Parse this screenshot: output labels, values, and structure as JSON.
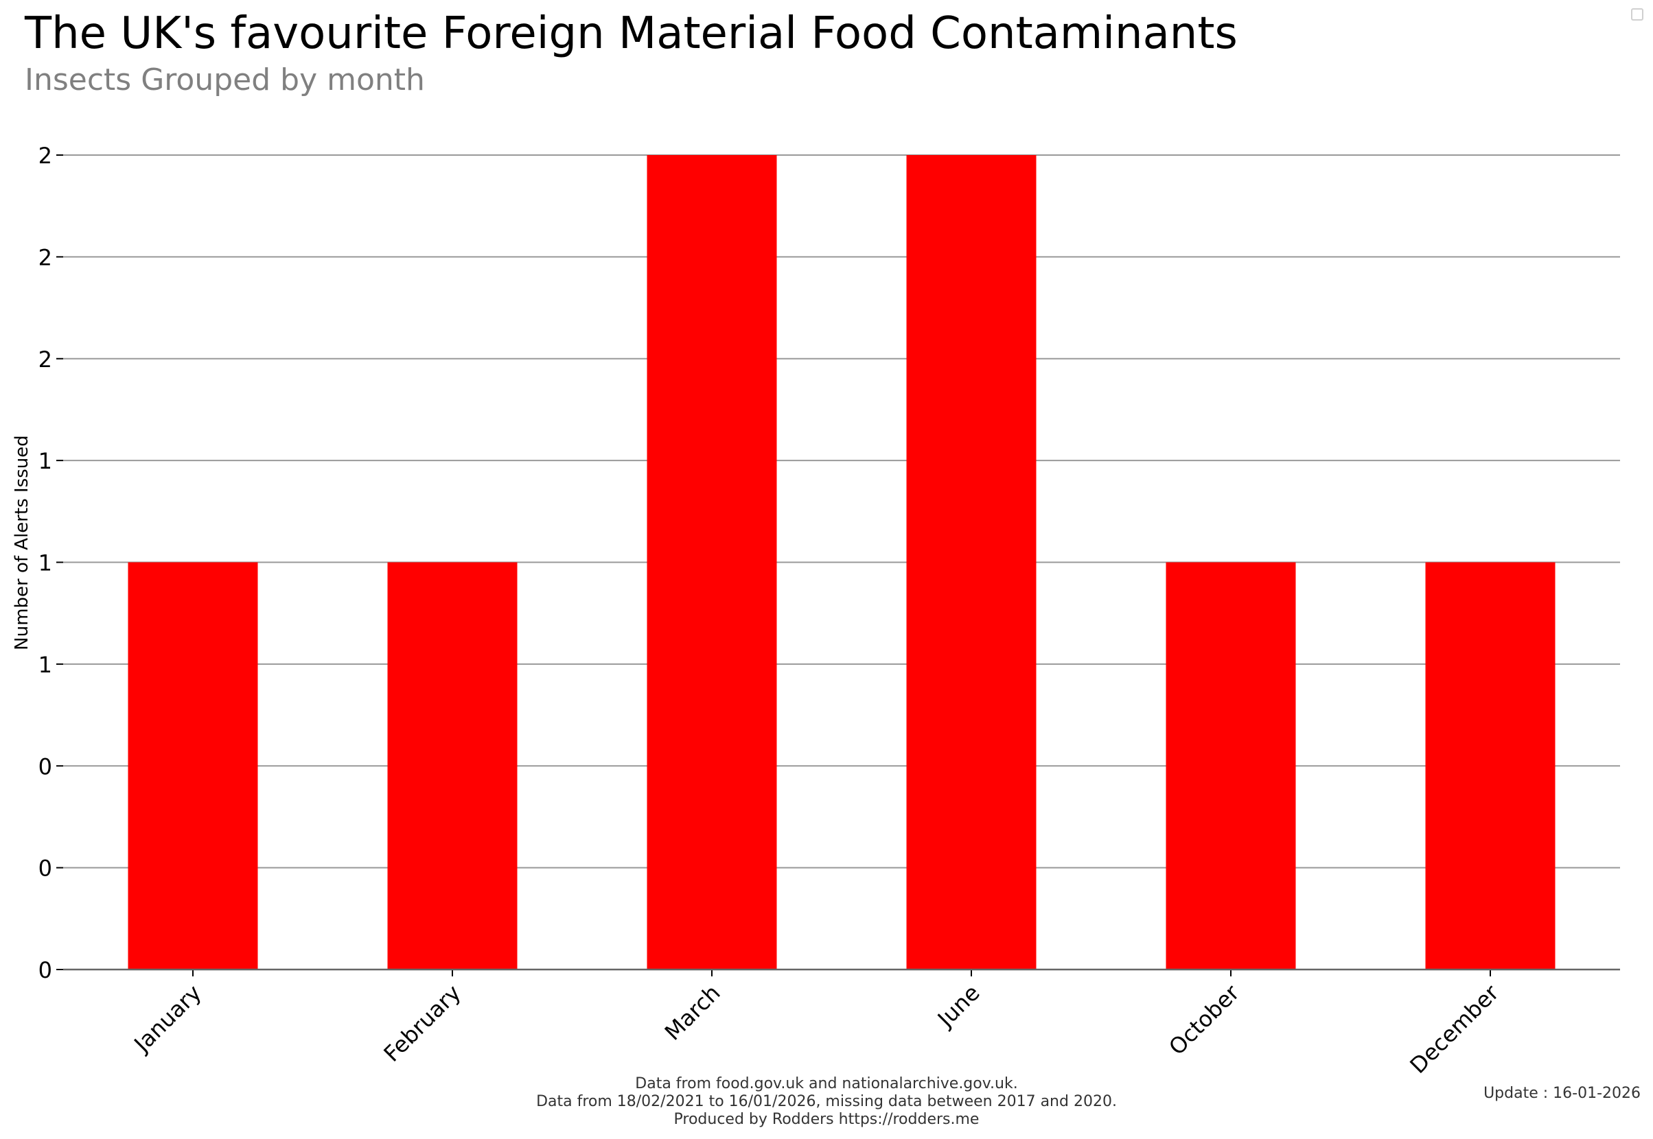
{
  "chart_data": {
    "type": "bar",
    "title": "The UK's favourite Foreign Material Food Contaminants",
    "subtitle": "Insects Grouped by month",
    "ylabel": "Number of Alerts Issued",
    "xlabel": "",
    "categories": [
      "January",
      "February",
      "March",
      "June",
      "October",
      "December"
    ],
    "values": [
      1,
      1,
      2,
      2,
      1,
      1
    ],
    "ylim": [
      0,
      2
    ],
    "yticks": [
      0,
      0.25,
      0.5,
      0.75,
      1,
      1.25,
      1.5,
      1.75,
      2
    ],
    "ytick_labels": [
      "0",
      "0",
      "0",
      "1",
      "1",
      "1",
      "2",
      "2",
      "2"
    ],
    "grid": "horizontal",
    "bar_color": "#ff0000",
    "grid_color": "#999999"
  },
  "footer": {
    "line1": "Data from food.gov.uk and nationalarchive.gov.uk.",
    "line2": "Data from 18/02/2021 to 16/01/2026, missing data between 2017 and 2020.",
    "line3": "Produced by Rodders https://rodders.me",
    "update": "Update : 16-01-2026"
  }
}
